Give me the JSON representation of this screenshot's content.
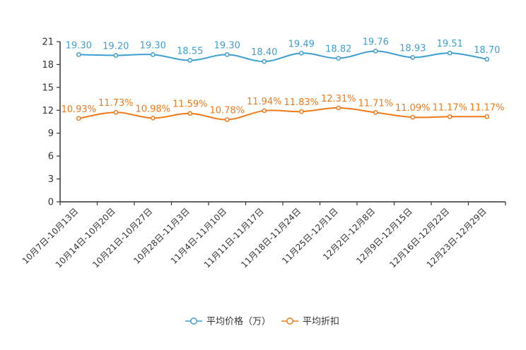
{
  "chart_data": {
    "type": "line",
    "categories": [
      "10月7日-10月13日",
      "10月14日-10月20日",
      "10月21日-10月27日",
      "10月28日-11月3日",
      "11月4日-11月10日",
      "11月11日-11月17日",
      "11月18日-11月24日",
      "11月25日-12月1日",
      "12月2日-12月8日",
      "12月9日-12月15日",
      "12月16日-12月22日",
      "12月23日-12月29日"
    ],
    "ylim": [
      0,
      21
    ],
    "yticks": [
      0,
      3,
      6,
      9,
      12,
      15,
      18,
      21
    ],
    "series": [
      {
        "name": "平均价格（万）",
        "color": "#3d9fd1",
        "values": [
          19.3,
          19.2,
          19.3,
          18.55,
          19.3,
          18.4,
          19.49,
          18.82,
          19.76,
          18.93,
          19.51,
          18.7
        ],
        "labels": [
          "19.30",
          "19.20",
          "19.30",
          "18.55",
          "19.30",
          "18.40",
          "19.49",
          "18.82",
          "19.76",
          "18.93",
          "19.51",
          "18.70"
        ]
      },
      {
        "name": "平均折扣",
        "color": "#f07a1a",
        "values": [
          10.93,
          11.73,
          10.98,
          11.59,
          10.78,
          11.94,
          11.83,
          12.31,
          11.71,
          11.09,
          11.17,
          11.17
        ],
        "labels": [
          "10.93%",
          "11.73%",
          "10.98%",
          "11.59%",
          "10.78%",
          "11.94%",
          "11.83%",
          "12.31%",
          "11.71%",
          "11.09%",
          "11.17%",
          "11.17%"
        ]
      }
    ],
    "legend_position": "bottom-center"
  }
}
